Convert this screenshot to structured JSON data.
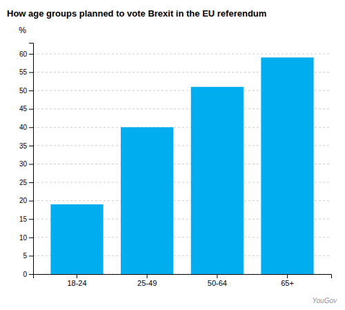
{
  "chart_data": {
    "type": "bar",
    "title": "How age groups planned to vote Brexit in the EU referendum",
    "categories": [
      "18-24",
      "25-49",
      "50-64",
      "65+"
    ],
    "values": [
      19,
      40,
      51,
      59
    ],
    "color": "#00AEEF",
    "ylabel": "%",
    "ylim": [
      0,
      63
    ],
    "yticks": [
      0,
      5,
      10,
      15,
      20,
      25,
      30,
      35,
      40,
      45,
      50,
      55,
      60
    ],
    "grid": true,
    "annotations": [
      "YouGov"
    ]
  }
}
